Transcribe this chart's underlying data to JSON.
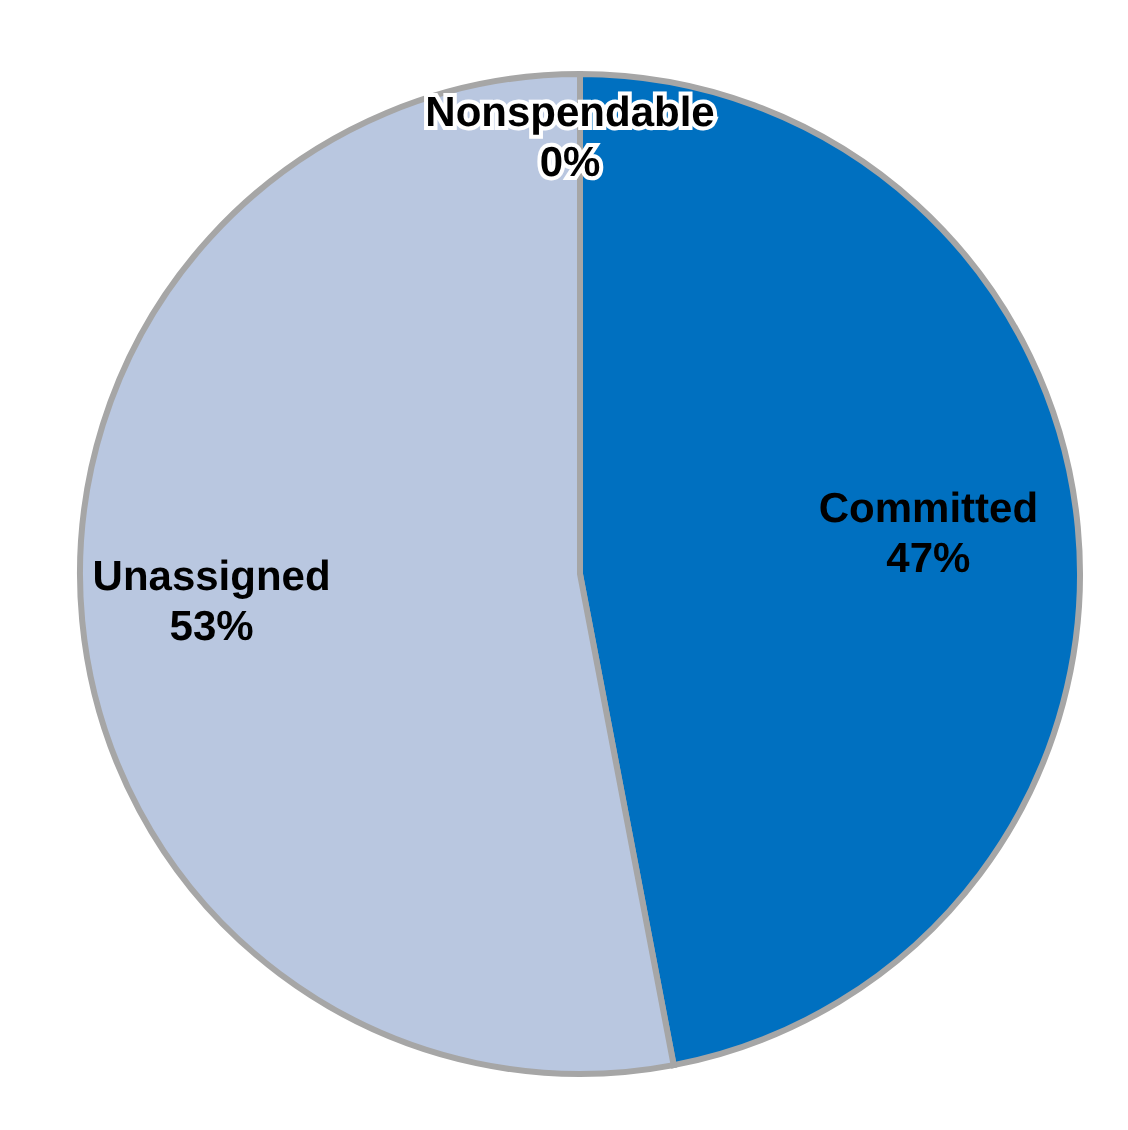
{
  "chart_data": {
    "type": "pie",
    "categories": [
      "Nonspendable",
      "Committed",
      "Unassigned"
    ],
    "values": [
      0,
      47,
      53
    ],
    "value_labels": [
      "0%",
      "47%",
      "53%"
    ],
    "colors": [
      "#ffffff",
      "#0070c0",
      "#b9c7e0"
    ]
  }
}
